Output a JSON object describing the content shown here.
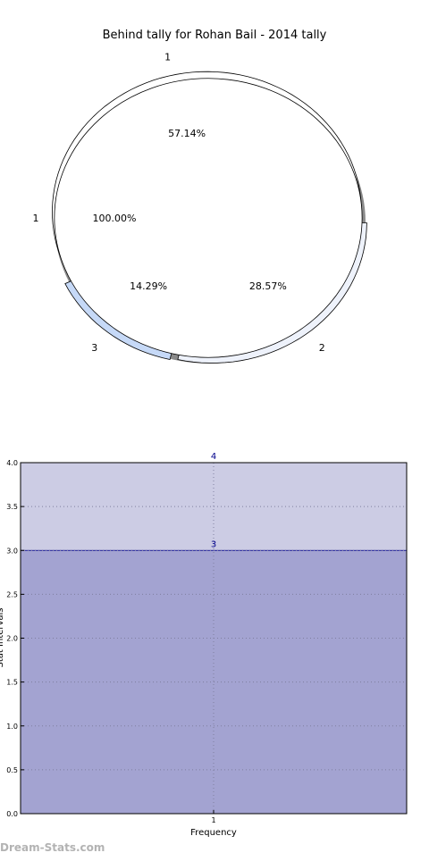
{
  "watermark": "Dream-Stats.com",
  "chart_data": [
    {
      "type": "pie",
      "title": "Behind tally for Rohan Bail - 2014 tally",
      "rings": [
        {
          "name": "outer",
          "slices": [
            {
              "label": "1",
              "value": 4,
              "pct_label": "57.14%",
              "color": "#ffffff"
            },
            {
              "label": "3",
              "value": 1,
              "pct_label": "14.29%",
              "color": "#c6d9f7"
            },
            {
              "label": "2",
              "value": 2,
              "pct_label": "28.57%",
              "color": "#eef2fb"
            }
          ]
        },
        {
          "name": "inner",
          "slices": [
            {
              "label": "1",
              "value": 1,
              "pct_label": "100.00%",
              "color": "#ffffff"
            }
          ]
        }
      ]
    },
    {
      "type": "bar",
      "categories": [
        "1"
      ],
      "series": [
        {
          "values": [
            4
          ],
          "color": "#cccce4"
        },
        {
          "values": [
            3
          ],
          "color": "#a3a3d1"
        }
      ],
      "data_labels": [
        "4",
        "3"
      ],
      "xlabel": "Frequency",
      "ylabel": "Stat Intervals",
      "ylim": [
        0,
        4
      ],
      "yticks": [
        "0.0",
        "0.5",
        "1.0",
        "1.5",
        "2.0",
        "2.5",
        "3.0",
        "3.5",
        "4.0"
      ],
      "grid": true
    }
  ]
}
